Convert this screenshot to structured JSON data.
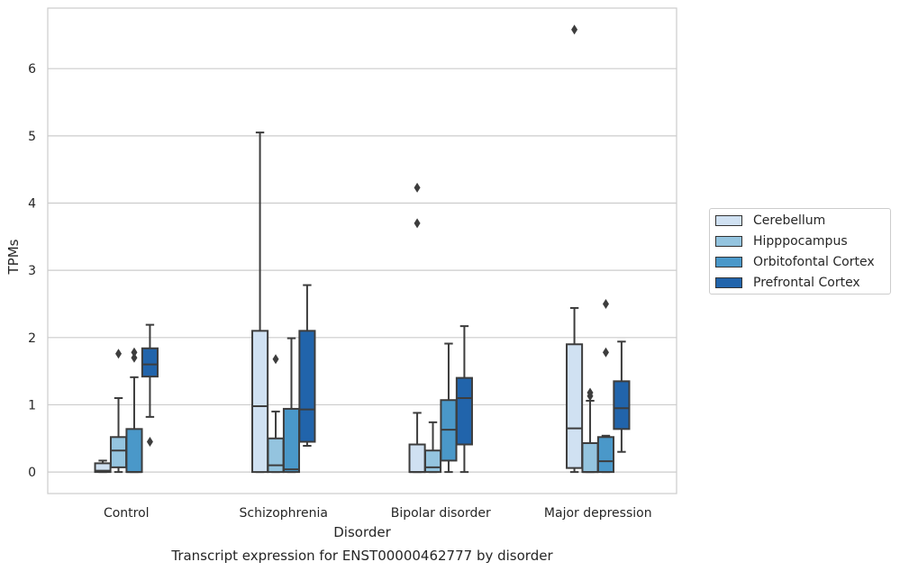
{
  "chart_data": {
    "type": "box",
    "xlabel": "Disorder",
    "ylabel": "TPMs",
    "caption": "Transcript expression for ENST00000462777 by disorder",
    "categories": [
      "Control",
      "Schizophrenia",
      "Bipolar disorder",
      "Major depression"
    ],
    "yticks": [
      "0",
      "1",
      "2",
      "3",
      "4",
      "5",
      "6"
    ],
    "ylim": [
      -0.32,
      6.9
    ],
    "grid": true,
    "legend_position": "right",
    "series": [
      {
        "name": "Cerebellum",
        "color": "#d0e1f2",
        "boxes": [
          {
            "whislo": 0.0,
            "q1": 0.0,
            "med": 0.02,
            "q3": 0.13,
            "whishi": 0.17,
            "fliers": []
          },
          {
            "whislo": 0.0,
            "q1": 0.0,
            "med": 0.98,
            "q3": 2.1,
            "whishi": 5.05,
            "fliers": []
          },
          {
            "whislo": 0.0,
            "q1": 0.0,
            "med": 0.0,
            "q3": 0.41,
            "whishi": 0.88,
            "fliers": [
              3.7,
              4.23
            ]
          },
          {
            "whislo": 0.0,
            "q1": 0.06,
            "med": 0.65,
            "q3": 1.9,
            "whishi": 2.44,
            "fliers": [
              6.58
            ]
          }
        ]
      },
      {
        "name": "Hipppocampus",
        "color": "#94c4df",
        "boxes": [
          {
            "whislo": 0.0,
            "q1": 0.07,
            "med": 0.32,
            "q3": 0.52,
            "whishi": 1.1,
            "fliers": [
              1.76
            ]
          },
          {
            "whislo": 0.0,
            "q1": 0.0,
            "med": 0.1,
            "q3": 0.5,
            "whishi": 0.9,
            "fliers": [
              1.68
            ]
          },
          {
            "whislo": 0.0,
            "q1": 0.0,
            "med": 0.07,
            "q3": 0.32,
            "whishi": 0.74,
            "fliers": []
          },
          {
            "whislo": 0.0,
            "q1": 0.0,
            "med": 0.0,
            "q3": 0.43,
            "whishi": 1.06,
            "fliers": [
              1.13,
              1.18
            ]
          }
        ]
      },
      {
        "name": "Orbitofontal Cortex",
        "color": "#4a98c9",
        "boxes": [
          {
            "whislo": 0.0,
            "q1": 0.0,
            "med": 0.0,
            "q3": 0.64,
            "whishi": 1.41,
            "fliers": [
              1.7,
              1.78
            ]
          },
          {
            "whislo": 0.0,
            "q1": 0.0,
            "med": 0.04,
            "q3": 0.94,
            "whishi": 1.99,
            "fliers": []
          },
          {
            "whislo": 0.0,
            "q1": 0.17,
            "med": 0.63,
            "q3": 1.07,
            "whishi": 1.91,
            "fliers": []
          },
          {
            "whislo": 0.0,
            "q1": 0.0,
            "med": 0.16,
            "q3": 0.52,
            "whishi": 0.54,
            "fliers": [
              1.78,
              2.5
            ]
          }
        ]
      },
      {
        "name": "Prefrontal Cortex",
        "color": "#2164ab",
        "boxes": [
          {
            "whislo": 0.82,
            "q1": 1.42,
            "med": 1.6,
            "q3": 1.84,
            "whishi": 2.19,
            "fliers": [
              0.45
            ]
          },
          {
            "whislo": 0.39,
            "q1": 0.45,
            "med": 0.93,
            "q3": 2.1,
            "whishi": 2.78,
            "fliers": []
          },
          {
            "whislo": 0.0,
            "q1": 0.41,
            "med": 1.1,
            "q3": 1.4,
            "whishi": 2.17,
            "fliers": []
          },
          {
            "whislo": 0.3,
            "q1": 0.64,
            "med": 0.95,
            "q3": 1.35,
            "whishi": 1.94,
            "fliers": []
          }
        ]
      }
    ]
  }
}
